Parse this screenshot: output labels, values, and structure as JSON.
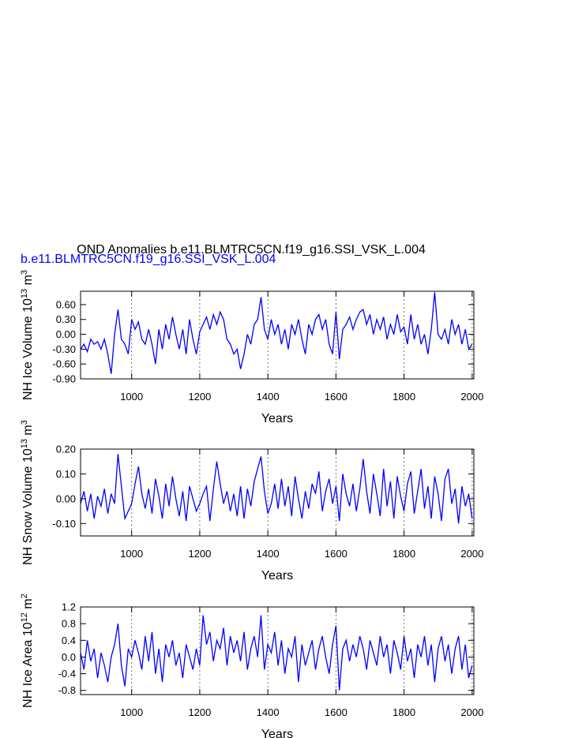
{
  "chart_data": [
    {
      "type": "line",
      "title": "OND Anomalies b.e11.BLMTRC5CN.f19_g16.SSI_VSK_L.004",
      "subtitle": "b.e11.BLMTRC5CN.f19_g16.SSI_VSK_L.004",
      "subtitle_color": "#0000ff",
      "ylabel": [
        "NH Ice Volume 10",
        "13",
        " m",
        "3"
      ],
      "xlabel": "Years",
      "grid": "x",
      "xlim": [
        850,
        2005
      ],
      "xticks": [
        1000,
        1200,
        1400,
        1600,
        1800,
        2000
      ],
      "ylim": [
        -0.9,
        0.87
      ],
      "yticks": [
        {
          "value": 0.6,
          "label": "0.60"
        },
        {
          "value": 0.3,
          "label": "0.30"
        },
        {
          "value": 0,
          "label": "0.00"
        },
        {
          "value": -0.3,
          "label": "-0.30"
        },
        {
          "value": -0.6,
          "label": "-0.60"
        },
        {
          "value": -0.9,
          "label": "-0.90"
        }
      ],
      "x": [
        850,
        860,
        870,
        880,
        890,
        900,
        910,
        920,
        930,
        940,
        950,
        960,
        970,
        980,
        990,
        1000,
        1010,
        1020,
        1030,
        1040,
        1050,
        1060,
        1070,
        1080,
        1090,
        1100,
        1110,
        1120,
        1130,
        1140,
        1150,
        1160,
        1170,
        1180,
        1190,
        1200,
        1210,
        1220,
        1230,
        1240,
        1250,
        1260,
        1270,
        1280,
        1290,
        1300,
        1310,
        1320,
        1330,
        1340,
        1350,
        1360,
        1370,
        1380,
        1390,
        1400,
        1410,
        1420,
        1430,
        1440,
        1450,
        1460,
        1470,
        1480,
        1490,
        1500,
        1510,
        1520,
        1530,
        1540,
        1550,
        1560,
        1570,
        1580,
        1590,
        1600,
        1610,
        1620,
        1630,
        1640,
        1650,
        1660,
        1670,
        1680,
        1690,
        1700,
        1710,
        1720,
        1730,
        1740,
        1750,
        1760,
        1770,
        1780,
        1790,
        1800,
        1810,
        1820,
        1830,
        1840,
        1850,
        1860,
        1870,
        1880,
        1890,
        1900,
        1910,
        1920,
        1930,
        1940,
        1950,
        1960,
        1970,
        1980,
        1990,
        2000
      ],
      "series": [
        {
          "color": "#0000ff",
          "values": [
            -0.3,
            -0.2,
            -0.35,
            -0.1,
            -0.2,
            -0.15,
            -0.3,
            -0.1,
            -0.4,
            -0.8,
            0.0,
            0.5,
            -0.1,
            -0.2,
            -0.4,
            0.3,
            0.1,
            0.25,
            -0.1,
            -0.2,
            0.1,
            -0.2,
            -0.6,
            0.1,
            -0.3,
            0.2,
            -0.1,
            0.35,
            0.0,
            -0.3,
            0.1,
            -0.4,
            0.3,
            -0.1,
            -0.4,
            0.05,
            0.2,
            0.35,
            0.1,
            0.4,
            0.2,
            0.45,
            0.3,
            -0.1,
            -0.2,
            -0.4,
            -0.3,
            -0.7,
            -0.4,
            0.0,
            -0.2,
            0.2,
            0.3,
            0.75,
            0.1,
            -0.1,
            0.3,
            0.0,
            0.2,
            -0.2,
            0.1,
            -0.3,
            0.2,
            0.0,
            0.3,
            -0.1,
            -0.4,
            0.2,
            0.0,
            0.3,
            0.4,
            0.1,
            0.3,
            -0.2,
            -0.4,
            0.45,
            -0.5,
            0.1,
            0.2,
            0.35,
            0.1,
            0.3,
            0.45,
            0.5,
            0.2,
            0.4,
            0.0,
            0.3,
            0.1,
            0.35,
            -0.1,
            0.2,
            0.0,
            0.4,
            0.05,
            0.15,
            -0.2,
            0.4,
            -0.1,
            0.2,
            -0.2,
            0.0,
            -0.4,
            0.1,
            0.85,
            0.0,
            -0.1,
            0.1,
            -0.2,
            0.3,
            0.0,
            0.2,
            -0.2,
            0.1,
            -0.3,
            -0.2
          ]
        }
      ]
    },
    {
      "type": "line",
      "ylabel": [
        "NH Snow Volume 10",
        "13",
        " m",
        "3"
      ],
      "xlabel": "Years",
      "grid": "x",
      "xlim": [
        850,
        2005
      ],
      "xticks": [
        1000,
        1200,
        1400,
        1600,
        1800,
        2000
      ],
      "ylim": [
        -0.15,
        0.2
      ],
      "yticks": [
        {
          "value": 0.2,
          "label": "0.20"
        },
        {
          "value": 0.1,
          "label": "0.10"
        },
        {
          "value": 0,
          "label": "0.00"
        },
        {
          "value": -0.1,
          "label": "-0.10"
        }
      ],
      "x": [
        850,
        860,
        870,
        880,
        890,
        900,
        910,
        920,
        930,
        940,
        950,
        960,
        970,
        980,
        990,
        1000,
        1010,
        1020,
        1030,
        1040,
        1050,
        1060,
        1070,
        1080,
        1090,
        1100,
        1110,
        1120,
        1130,
        1140,
        1150,
        1160,
        1170,
        1180,
        1190,
        1200,
        1210,
        1220,
        1230,
        1240,
        1250,
        1260,
        1270,
        1280,
        1290,
        1300,
        1310,
        1320,
        1330,
        1340,
        1350,
        1360,
        1370,
        1380,
        1390,
        1400,
        1410,
        1420,
        1430,
        1440,
        1450,
        1460,
        1470,
        1480,
        1490,
        1500,
        1510,
        1520,
        1530,
        1540,
        1550,
        1560,
        1570,
        1580,
        1590,
        1600,
        1610,
        1620,
        1630,
        1640,
        1650,
        1660,
        1670,
        1680,
        1690,
        1700,
        1710,
        1720,
        1730,
        1740,
        1750,
        1760,
        1770,
        1780,
        1790,
        1800,
        1810,
        1820,
        1830,
        1840,
        1850,
        1860,
        1870,
        1880,
        1890,
        1900,
        1910,
        1920,
        1930,
        1940,
        1950,
        1960,
        1970,
        1980,
        1990,
        2000
      ],
      "series": [
        {
          "color": "#0000ff",
          "values": [
            -0.02,
            0.03,
            -0.05,
            0.02,
            -0.08,
            0.01,
            -0.03,
            0.04,
            -0.06,
            0.02,
            -0.02,
            0.18,
            0.05,
            -0.08,
            -0.05,
            -0.02,
            0.06,
            0.13,
            0.02,
            -0.04,
            0.04,
            -0.06,
            0.08,
            0.01,
            -0.08,
            0.06,
            -0.03,
            0.09,
            0.0,
            -0.07,
            0.03,
            -0.09,
            0.05,
            0.0,
            -0.05,
            -0.02,
            0.02,
            0.05,
            -0.09,
            0.04,
            0.15,
            0.06,
            -0.02,
            0.03,
            -0.05,
            0.02,
            -0.07,
            0.05,
            -0.08,
            0.04,
            -0.03,
            0.07,
            0.12,
            0.17,
            0.03,
            -0.06,
            -0.02,
            0.06,
            -0.04,
            0.08,
            -0.03,
            0.05,
            -0.07,
            0.09,
            0.0,
            -0.08,
            0.03,
            -0.04,
            0.06,
            0.02,
            0.11,
            -0.05,
            0.03,
            0.08,
            -0.02,
            0.05,
            -0.09,
            0.1,
            0.02,
            -0.03,
            0.06,
            -0.05,
            0.04,
            0.16,
            0.03,
            -0.06,
            0.1,
            0.02,
            -0.07,
            0.12,
            -0.03,
            0.07,
            -0.08,
            0.09,
            0.01,
            -0.05,
            0.06,
            0.11,
            -0.06,
            0.03,
            0.12,
            -0.04,
            0.05,
            -0.08,
            0.09,
            0.02,
            -0.09,
            0.08,
            0.12,
            -0.02,
            0.04,
            -0.1,
            0.05,
            -0.03,
            0.02,
            -0.08
          ]
        }
      ]
    },
    {
      "type": "line",
      "ylabel": [
        "NH Ice Area 10",
        "12",
        " m",
        "2"
      ],
      "xlabel": "Years",
      "grid": "x",
      "xlim": [
        850,
        2005
      ],
      "xticks": [
        1000,
        1200,
        1400,
        1600,
        1800,
        2000
      ],
      "ylim": [
        -0.9,
        1.2
      ],
      "yticks": [
        1.2,
        0.8,
        0.4,
        {
          "value": 0,
          "label": "0.0"
        },
        -0.4,
        -0.8
      ],
      "x": [
        850,
        860,
        870,
        880,
        890,
        900,
        910,
        920,
        930,
        940,
        950,
        960,
        970,
        980,
        990,
        1000,
        1010,
        1020,
        1030,
        1040,
        1050,
        1060,
        1070,
        1080,
        1090,
        1100,
        1110,
        1120,
        1130,
        1140,
        1150,
        1160,
        1170,
        1180,
        1190,
        1200,
        1210,
        1220,
        1230,
        1240,
        1250,
        1260,
        1270,
        1280,
        1290,
        1300,
        1310,
        1320,
        1330,
        1340,
        1350,
        1360,
        1370,
        1380,
        1390,
        1400,
        1410,
        1420,
        1430,
        1440,
        1450,
        1460,
        1470,
        1480,
        1490,
        1500,
        1510,
        1520,
        1530,
        1540,
        1550,
        1560,
        1570,
        1580,
        1590,
        1600,
        1610,
        1620,
        1630,
        1640,
        1650,
        1660,
        1670,
        1680,
        1690,
        1700,
        1710,
        1720,
        1730,
        1740,
        1750,
        1760,
        1770,
        1780,
        1790,
        1800,
        1810,
        1820,
        1830,
        1840,
        1850,
        1860,
        1870,
        1880,
        1890,
        1900,
        1910,
        1920,
        1930,
        1940,
        1950,
        1960,
        1970,
        1980,
        1990,
        2000
      ],
      "series": [
        {
          "color": "#0000ff",
          "values": [
            0.1,
            -0.3,
            0.4,
            -0.1,
            0.2,
            -0.5,
            0.1,
            -0.2,
            -0.6,
            0.0,
            0.3,
            0.8,
            -0.2,
            -0.7,
            0.2,
            0.0,
            0.4,
            0.1,
            -0.3,
            0.5,
            -0.1,
            0.6,
            -0.4,
            0.2,
            -0.6,
            0.3,
            0.0,
            0.4,
            -0.2,
            0.1,
            -0.5,
            0.3,
            0.0,
            -0.3,
            0.2,
            -0.2,
            1.0,
            0.3,
            0.6,
            -0.1,
            0.4,
            0.2,
            0.7,
            -0.2,
            0.5,
            0.1,
            0.4,
            -0.1,
            0.6,
            -0.3,
            0.2,
            0.5,
            0.0,
            1.0,
            -0.3,
            0.3,
            0.1,
            0.6,
            -0.2,
            0.4,
            -0.4,
            0.2,
            0.0,
            0.5,
            -0.6,
            0.3,
            -0.2,
            0.1,
            0.4,
            -0.3,
            0.2,
            0.5,
            0.0,
            -0.4,
            0.3,
            0.75,
            -0.8,
            0.2,
            0.4,
            -0.1,
            0.3,
            0.0,
            0.5,
            0.2,
            -0.3,
            0.4,
            0.1,
            -0.2,
            0.5,
            0.0,
            0.3,
            -0.4,
            0.4,
            0.1,
            -0.3,
            0.5,
            -0.1,
            0.2,
            -0.5,
            0.3,
            0.0,
            0.5,
            -0.2,
            0.3,
            -0.6,
            0.2,
            0.5,
            -0.1,
            0.3,
            -0.4,
            0.2,
            0.5,
            -0.3,
            0.3,
            -0.5,
            -0.2
          ]
        }
      ]
    }
  ]
}
